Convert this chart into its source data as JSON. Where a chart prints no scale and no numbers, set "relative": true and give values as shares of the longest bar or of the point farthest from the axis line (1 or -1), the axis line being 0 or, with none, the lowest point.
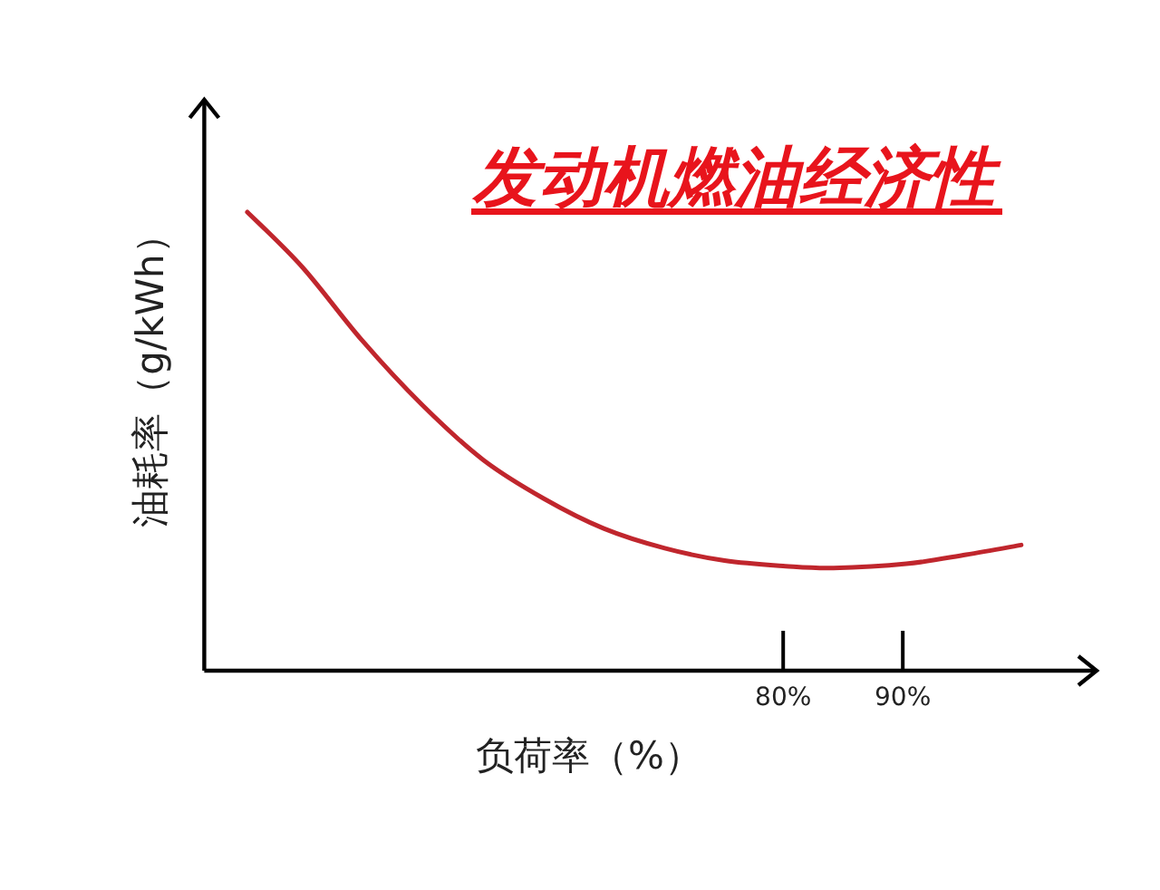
{
  "chart_data": {
    "type": "line",
    "title": "发动机燃油经济性",
    "xlabel": "负荷率（%）",
    "ylabel": "油耗率（g/kWh）",
    "relative": true,
    "grid": false,
    "marker": "none",
    "line_style": "solid",
    "xlim": [
      31.6,
      106.2
    ],
    "xticks": [
      {
        "value": 80,
        "label": "80%"
      },
      {
        "value": 90,
        "label": "90%"
      }
    ],
    "x": [
      35.2,
      39.8,
      44.8,
      49.8,
      54.9,
      60.0,
      65.0,
      70.1,
      75.1,
      80.2,
      84.2,
      90.3,
      95.3,
      99.9
    ],
    "series": [
      {
        "color": "#c0262d",
        "values": [
          1,
          0.88,
          0.72,
          0.58,
          0.46,
          0.375,
          0.31,
          0.267,
          0.24,
          0.228,
          0.224,
          0.233,
          0.253,
          0.274
        ]
      }
    ]
  }
}
